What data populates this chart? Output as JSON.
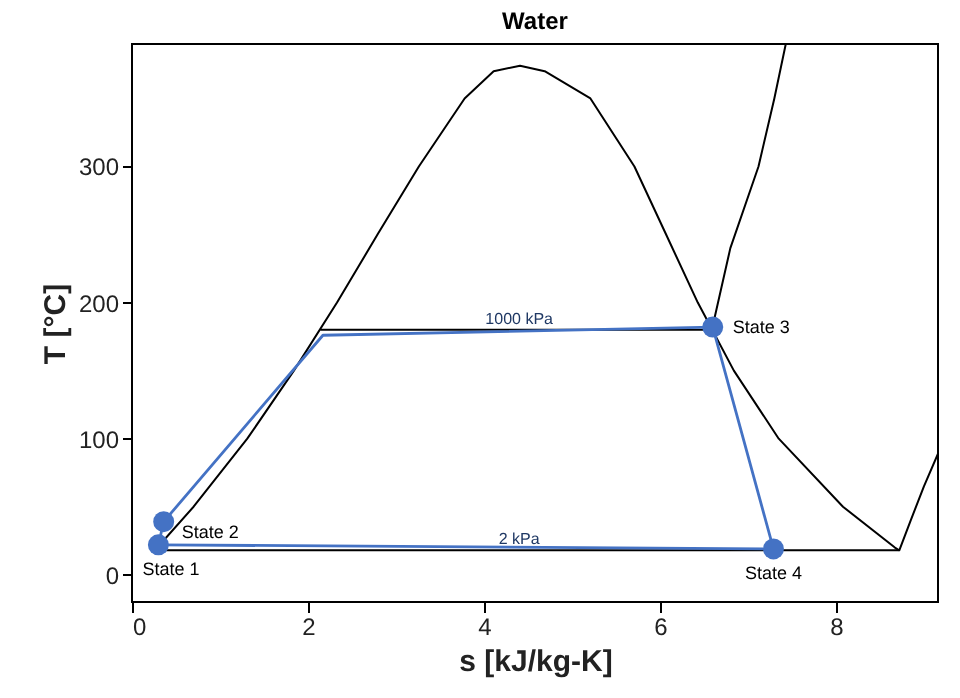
{
  "chart_data": {
    "type": "line",
    "title": "Water",
    "xlabel": "s [kJ/kg-K]",
    "ylabel": "T [°C]",
    "xlim": [
      0,
      9.16
    ],
    "ylim": [
      -20,
      390
    ],
    "xticks": [
      0,
      2,
      4,
      6,
      8
    ],
    "yticks": [
      0,
      100,
      200,
      300
    ],
    "grid": false,
    "marker": "none",
    "line_style": "solid",
    "series": [
      {
        "color": "#000000",
        "x": [
          0.26,
          0.7,
          1.31,
          1.84,
          2.33,
          2.79,
          3.26,
          3.78,
          4.11,
          4.41,
          4.69,
          5.21,
          5.71,
          6.07,
          6.43,
          6.84,
          7.35,
          8.08,
          8.67,
          8.72
        ],
        "values": [
          18,
          50,
          100,
          150,
          200,
          250,
          300,
          350,
          370,
          374,
          370,
          350,
          300,
          250,
          200,
          150,
          100,
          50,
          20,
          18
        ]
      },
      {
        "color": "#000000",
        "x": [
          0.26,
          8.72,
          8.85,
          9.0,
          9.16
        ],
        "values": [
          18,
          18,
          40,
          65,
          89
        ]
      },
      {
        "color": "#000000",
        "x": [
          2.14,
          6.59,
          6.8,
          7.12,
          7.3,
          7.43
        ],
        "values": [
          180,
          180,
          240,
          300,
          350,
          390
        ]
      },
      {
        "color": "#4472c4",
        "x": [
          0.3,
          0.36,
          2.17,
          6.6,
          7.29
        ],
        "values": [
          22,
          39,
          176,
          182,
          19
        ]
      },
      {
        "color": "#4472c4",
        "x": [
          0.3,
          7.29
        ],
        "values": [
          22,
          19
        ]
      },
      {
        "type": "scatter",
        "marker": "circle",
        "color": "#4472c4",
        "x": [
          0.3,
          0.36,
          6.6,
          7.29
        ],
        "values": [
          22,
          39,
          182,
          19
        ]
      }
    ],
    "annotations": [
      {
        "text": "State 1",
        "x": 0.3,
        "y": 22
      },
      {
        "text": "State 2",
        "x": 0.36,
        "y": 39
      },
      {
        "text": "State 3",
        "x": 6.6,
        "y": 182
      },
      {
        "text": "State 4",
        "x": 7.29,
        "y": 19
      },
      {
        "text": "1000 kPa",
        "x": 4.4,
        "y": 180
      },
      {
        "text": "2 kPa",
        "x": 4.4,
        "y": 18
      }
    ]
  }
}
